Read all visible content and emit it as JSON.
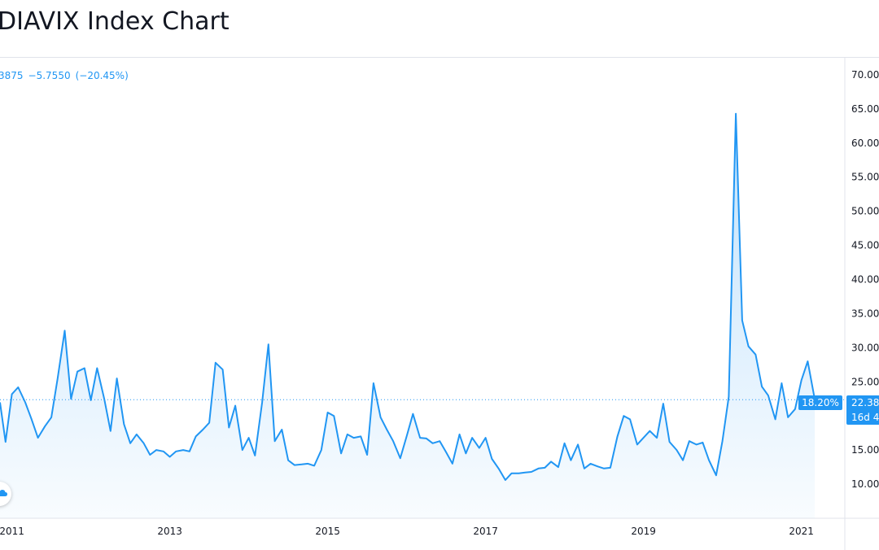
{
  "page": {
    "title": "DIAVIX Index Chart"
  },
  "legend": {
    "value": "3875",
    "change": "−5.7550",
    "change_pct": "(−20.45%)"
  },
  "badges": {
    "percent_label": "18.20%",
    "price_label": "22.38",
    "countdown_label": "16d 4"
  },
  "colors": {
    "line": "#2196f3",
    "fill": "#e3f2fd",
    "text": "#131722",
    "grid": "#e0e3eb"
  },
  "icons": {
    "corner_button": "cloud-icon"
  },
  "chart_data": {
    "type": "area",
    "title": "",
    "xlabel": "",
    "ylabel": "",
    "x_ticks": [
      "2011",
      "2013",
      "2015",
      "2017",
      "2019",
      "2021"
    ],
    "x_tick_years": [
      2011,
      2013,
      2015,
      2017,
      2019,
      2021
    ],
    "y_ticks": [
      "10.00",
      "15.00",
      "20.00",
      "25.00",
      "30.00",
      "35.00",
      "40.00",
      "45.00",
      "50.00",
      "55.00",
      "60.00",
      "65.00",
      "70.00"
    ],
    "y_tick_values": [
      10,
      15,
      20,
      25,
      30,
      35,
      40,
      45,
      50,
      55,
      60,
      65,
      70
    ],
    "ylim": [
      5,
      72.5
    ],
    "xlim": [
      2010.85,
      2021.55
    ],
    "grid": false,
    "reference_value": 22.38,
    "series": [
      {
        "x": [
          2010.85,
          2010.92,
          2011.0,
          2011.08,
          2011.17,
          2011.25,
          2011.33,
          2011.42,
          2011.5,
          2011.58,
          2011.67,
          2011.75,
          2011.83,
          2011.92,
          2012.0,
          2012.08,
          2012.17,
          2012.25,
          2012.33,
          2012.42,
          2012.5,
          2012.58,
          2012.67,
          2012.75,
          2012.83,
          2012.92,
          2013.0,
          2013.08,
          2013.17,
          2013.25,
          2013.33,
          2013.42,
          2013.5,
          2013.58,
          2013.67,
          2013.75,
          2013.83,
          2013.92,
          2014.0,
          2014.08,
          2014.17,
          2014.25,
          2014.33,
          2014.42,
          2014.5,
          2014.58,
          2014.67,
          2014.75,
          2014.83,
          2014.92,
          2015.0,
          2015.08,
          2015.17,
          2015.25,
          2015.33,
          2015.42,
          2015.5,
          2015.58,
          2015.67,
          2015.75,
          2015.83,
          2015.92,
          2016.0,
          2016.08,
          2016.17,
          2016.25,
          2016.33,
          2016.42,
          2016.5,
          2016.58,
          2016.67,
          2016.75,
          2016.83,
          2016.92,
          2017.0,
          2017.08,
          2017.17,
          2017.25,
          2017.33,
          2017.42,
          2017.5,
          2017.58,
          2017.67,
          2017.75,
          2017.83,
          2017.92,
          2018.0,
          2018.08,
          2018.17,
          2018.25,
          2018.33,
          2018.42,
          2018.5,
          2018.58,
          2018.67,
          2018.75,
          2018.83,
          2018.92,
          2019.0,
          2019.08,
          2019.17,
          2019.25,
          2019.33,
          2019.42,
          2019.5,
          2019.58,
          2019.67,
          2019.75,
          2019.83,
          2019.92,
          2020.0,
          2020.08,
          2020.17,
          2020.25,
          2020.33,
          2020.42,
          2020.5,
          2020.58,
          2020.67,
          2020.75,
          2020.83,
          2020.92,
          2021.0,
          2021.08,
          2021.17
        ],
        "y": [
          22.0,
          16.2,
          23.2,
          24.2,
          22.0,
          19.5,
          16.8,
          18.5,
          19.8,
          25.5,
          32.5,
          22.5,
          26.5,
          27.0,
          22.3,
          27.0,
          22.5,
          17.8,
          25.5,
          18.8,
          16.0,
          17.3,
          16.0,
          14.3,
          15.0,
          14.8,
          14.0,
          14.8,
          15.0,
          14.8,
          17.0,
          18.0,
          19.0,
          27.8,
          26.8,
          18.3,
          21.5,
          15.0,
          16.8,
          14.2,
          22.0,
          30.5,
          16.3,
          18.0,
          13.5,
          12.8,
          12.9,
          13.0,
          12.7,
          15.0,
          20.5,
          20.0,
          14.5,
          17.3,
          16.8,
          17.0,
          14.3,
          24.8,
          19.8,
          18.0,
          16.3,
          13.8,
          17.0,
          20.3,
          16.8,
          16.7,
          16.0,
          16.3,
          14.7,
          13.0,
          17.3,
          14.5,
          16.8,
          15.3,
          16.8,
          13.7,
          12.2,
          10.6,
          11.6,
          11.6,
          11.7,
          11.8,
          12.3,
          12.4,
          13.3,
          12.5,
          16.0,
          13.5,
          15.8,
          12.3,
          13.0,
          12.6,
          12.3,
          12.4,
          17.0,
          20.0,
          19.5,
          15.8,
          16.8,
          17.8,
          16.8,
          21.8,
          16.2,
          15.0,
          13.5,
          16.3,
          15.8,
          16.1,
          13.5,
          11.3,
          16.3,
          22.8,
          64.3,
          34.0,
          30.2,
          29.0,
          24.3,
          23.0,
          19.5,
          24.8,
          19.8,
          21.0,
          25.2,
          28.0,
          22.4
        ]
      }
    ]
  }
}
